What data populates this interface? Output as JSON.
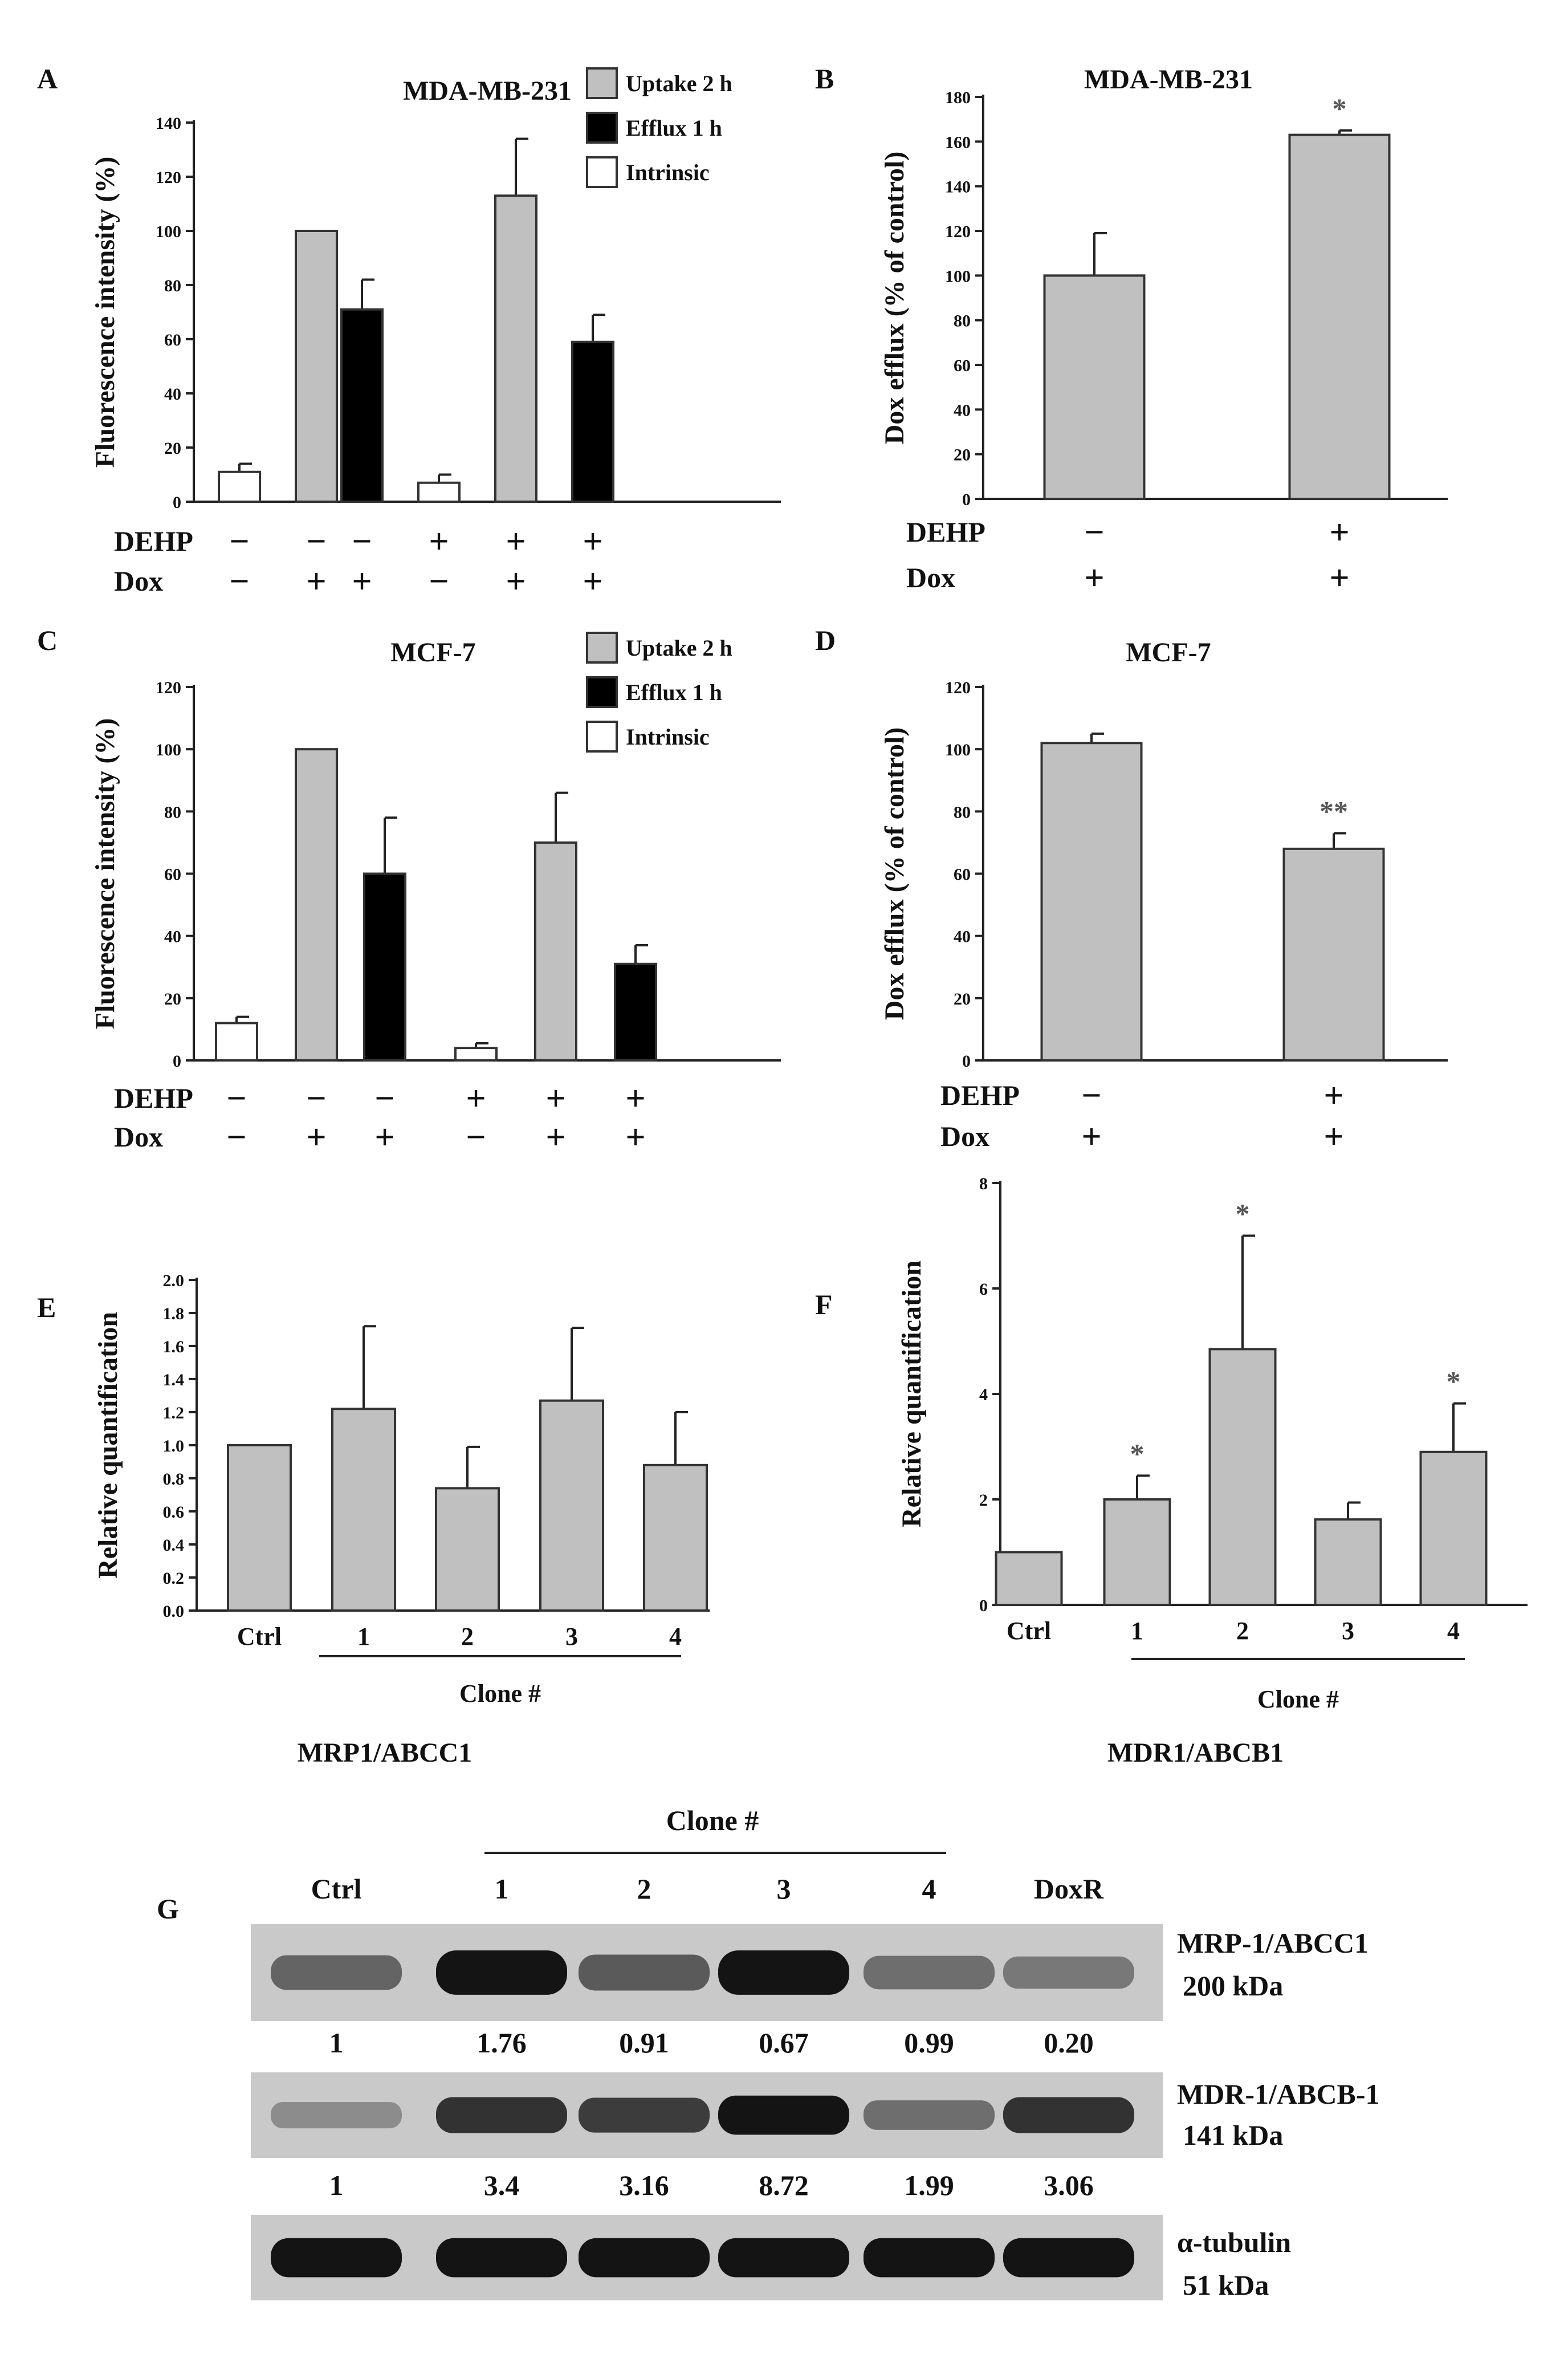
{
  "chart_data": [
    {
      "panel": "A",
      "type": "bar",
      "title": "MDA-MB-231",
      "ylabel": "Fluorescence intensity (%)",
      "ylim": [
        0,
        140
      ],
      "yticks": [
        "0",
        "20",
        "40",
        "60",
        "80",
        "100",
        "120",
        "140"
      ],
      "legend": [
        {
          "label": "Uptake 2 h",
          "color": "#c0c0c0"
        },
        {
          "label": "Efflux 1 h",
          "color": "#000000"
        },
        {
          "label": "Intrinsic",
          "color": "#ffffff"
        }
      ],
      "row_labels": [
        "DEHP",
        "Dox"
      ],
      "bars": [
        {
          "group": "Intrinsic",
          "value": 11,
          "err": 3,
          "dehp": "−",
          "dox": "−"
        },
        {
          "group": "Uptake 2 h",
          "value": 100,
          "err": 0,
          "dehp": "−",
          "dox": "+"
        },
        {
          "group": "Efflux 1 h",
          "value": 71,
          "err": 11,
          "dehp": "−",
          "dox": "+"
        },
        {
          "group": "Intrinsic",
          "value": 7,
          "err": 3,
          "dehp": "+",
          "dox": "−"
        },
        {
          "group": "Uptake 2 h",
          "value": 113,
          "err": 21,
          "dehp": "+",
          "dox": "+"
        },
        {
          "group": "Efflux 1 h",
          "value": 59,
          "err": 10,
          "dehp": "+",
          "dox": "+"
        }
      ]
    },
    {
      "panel": "B",
      "type": "bar",
      "title": "MDA-MB-231",
      "ylabel": "Dox efflux (% of control)",
      "ylim": [
        0,
        180
      ],
      "yticks": [
        "0",
        "20",
        "40",
        "60",
        "80",
        "100",
        "120",
        "140",
        "160",
        "180"
      ],
      "row_labels": [
        "DEHP",
        "Dox"
      ],
      "bars": [
        {
          "value": 100,
          "err": 19,
          "dehp": "−",
          "dox": "+",
          "star": ""
        },
        {
          "value": 163,
          "err": 2,
          "dehp": "+",
          "dox": "+",
          "star": "*"
        }
      ]
    },
    {
      "panel": "C",
      "type": "bar",
      "title": "MCF-7",
      "ylabel": "Fluorescence intensity (%)",
      "ylim": [
        0,
        120
      ],
      "yticks": [
        "0",
        "20",
        "40",
        "60",
        "80",
        "100",
        "120"
      ],
      "legend": [
        {
          "label": "Uptake 2 h",
          "color": "#c0c0c0"
        },
        {
          "label": "Efflux 1 h",
          "color": "#000000"
        },
        {
          "label": "Intrinsic",
          "color": "#ffffff"
        }
      ],
      "row_labels": [
        "DEHP",
        "Dox"
      ],
      "bars": [
        {
          "group": "Intrinsic",
          "value": 12,
          "err": 2,
          "dehp": "−",
          "dox": "−"
        },
        {
          "group": "Uptake 2 h",
          "value": 100,
          "err": 0,
          "dehp": "−",
          "dox": "+"
        },
        {
          "group": "Efflux 1 h",
          "value": 60,
          "err": 18,
          "dehp": "−",
          "dox": "+"
        },
        {
          "group": "Intrinsic",
          "value": 4,
          "err": 1.5,
          "dehp": "+",
          "dox": "−"
        },
        {
          "group": "Uptake 2 h",
          "value": 70,
          "err": 16,
          "dehp": "+",
          "dox": "+"
        },
        {
          "group": "Efflux 1 h",
          "value": 31,
          "err": 6,
          "dehp": "+",
          "dox": "+"
        }
      ]
    },
    {
      "panel": "D",
      "type": "bar",
      "title": "MCF-7",
      "ylabel": "Dox efflux (% of control)",
      "ylim": [
        0,
        120
      ],
      "yticks": [
        "0",
        "20",
        "40",
        "60",
        "80",
        "100",
        "120"
      ],
      "row_labels": [
        "DEHP",
        "Dox"
      ],
      "bars": [
        {
          "value": 102,
          "err": 3,
          "dehp": "−",
          "dox": "+",
          "star": ""
        },
        {
          "value": 68,
          "err": 5,
          "dehp": "+",
          "dox": "+",
          "star": "**"
        }
      ]
    },
    {
      "panel": "E",
      "type": "bar",
      "title": "MRP1/ABCC1",
      "ylabel": "Relative quantification",
      "ylim": [
        0,
        2.0
      ],
      "yticks": [
        "0.0",
        "0.2",
        "0.4",
        "0.6",
        "0.8",
        "1.0",
        "1.2",
        "1.4",
        "1.6",
        "1.8",
        "2.0"
      ],
      "categories": [
        "Ctrl",
        "1",
        "2",
        "3",
        "4"
      ],
      "xlabel": "Clone #",
      "values": [
        1.0,
        1.22,
        0.74,
        1.27,
        0.88
      ],
      "errors": [
        0,
        0.5,
        0.25,
        0.44,
        0.32
      ],
      "stars": [
        "",
        "",
        "",
        "",
        ""
      ]
    },
    {
      "panel": "F",
      "type": "bar",
      "title": "MDR1/ABCB1",
      "ylabel": "Relative quantification",
      "ylim": [
        0,
        8
      ],
      "yticks": [
        "0",
        "2",
        "4",
        "6",
        "8"
      ],
      "categories": [
        "Ctrl",
        "1",
        "2",
        "3",
        "4"
      ],
      "xlabel": "Clone #",
      "values": [
        1.0,
        2.0,
        4.85,
        1.62,
        2.9
      ],
      "errors": [
        0,
        0.45,
        2.15,
        0.32,
        0.92
      ],
      "stars": [
        "",
        "*",
        "*",
        "",
        "*"
      ]
    }
  ],
  "western_blot": {
    "panel": "G",
    "clone_header": "Clone #",
    "lanes": [
      "Ctrl",
      "1",
      "2",
      "3",
      "4",
      "DoxR"
    ],
    "blots": [
      {
        "protein": "MRP-1/ABCC1",
        "size": "200 kDa",
        "densities": [
          "1",
          "1.76",
          "0.91",
          "0.67",
          "0.99",
          "0.20"
        ],
        "intensity": [
          0.55,
          0.95,
          0.6,
          0.95,
          0.5,
          0.45
        ]
      },
      {
        "protein": "MDR-1/ABCB-1",
        "size": "141  kDa",
        "densities": [
          "1",
          "3.4",
          "3.16",
          "8.72",
          "1.99",
          "3.06"
        ],
        "intensity": [
          0.35,
          0.8,
          0.75,
          0.95,
          0.5,
          0.8
        ]
      },
      {
        "protein": "α-tubulin",
        "size": "51 kDa",
        "densities": [],
        "intensity": [
          0.95,
          0.95,
          0.95,
          0.95,
          0.95,
          0.95
        ]
      }
    ]
  }
}
